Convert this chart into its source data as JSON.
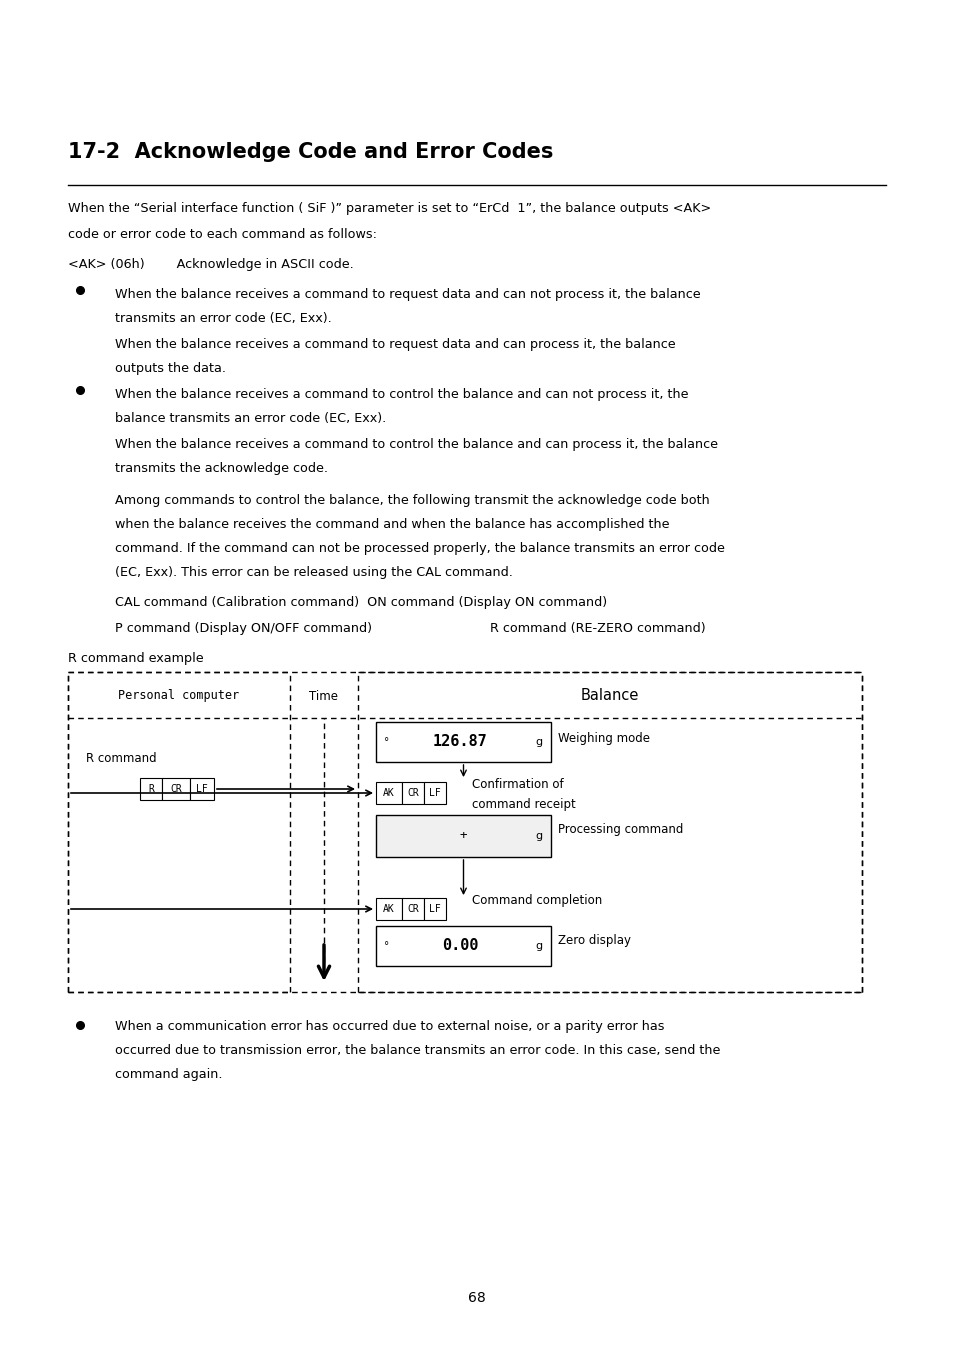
{
  "title": "17-2  Acknowledge Code and Error Codes",
  "bg_color": "#ffffff",
  "text_color": "#000000",
  "page_number": "68",
  "line1": "When the “Serial interface function ( SiF )” parameter is set to “ErCd  1”, the balance outputs <AK>",
  "line2": "code or error code to each command as follows:",
  "ak_line1": "<AK> (06h)        Acknowledge in ASCII code.",
  "bullet1_line1": "When the balance receives a command to request data and can not process it, the balance",
  "bullet1_line2": "transmits an error code (EC, Exx).",
  "bullet1_line3": "When the balance receives a command to request data and can process it, the balance",
  "bullet1_line4": "outputs the data.",
  "bullet2_line1": "When the balance receives a command to control the balance and can not process it, the",
  "bullet2_line2": "balance transmits an error code (EC, Exx).",
  "bullet2_line3": "When the balance receives a command to control the balance and can process it, the balance",
  "bullet2_line4": "transmits the acknowledge code.",
  "para1": "Among commands to control the balance, the following transmit the acknowledge code both",
  "para2": "when the balance receives the command and when the balance has accomplished the",
  "para3": "command. If the command can not be processed properly, the balance transmits an error code",
  "para4": "(EC, Exx). This error can be released using the CAL command.",
  "cal_line": "CAL command (Calibration command)  ON command (Display ON command)",
  "p_line1": "P command (Display ON/OFF command)",
  "p_line2": "R command (RE-ZERO command)",
  "r_example": "R command example",
  "diagram_header_pc": "Personal computer",
  "diagram_header_time": "Time",
  "diagram_header_balance": "Balance",
  "r_cmd_label": "R command",
  "weighing_display": "126.87",
  "weighing_label": "Weighing mode",
  "confirm_label1": "Confirmation of",
  "confirm_label2": "command receipt",
  "processing_label": "Processing command",
  "completion_label": "Command completion",
  "zero_display": "0.00",
  "zero_label": "Zero display",
  "bullet3_line1": "When a communication error has occurred due to external noise, or a parity error has",
  "bullet3_line2": "occurred due to transmission error, the balance transmits an error code. In this case, send the",
  "bullet3_line3": "command again.",
  "body_fs": 9.2,
  "small_fs": 8.5,
  "title_fs": 15
}
